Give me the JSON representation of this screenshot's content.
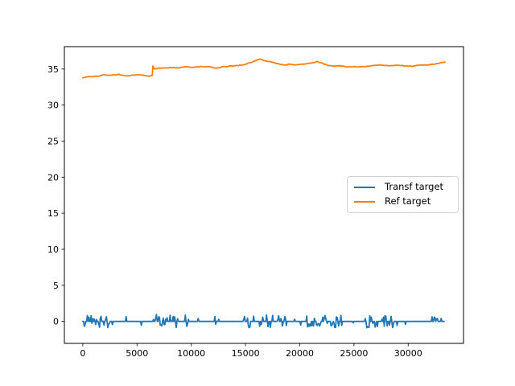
{
  "figure": {
    "background": "#ffffff"
  },
  "chart_data": {
    "type": "line",
    "title": "",
    "xlabel": "",
    "ylabel": "",
    "grid": false,
    "legend": {
      "location": "center right",
      "entries": [
        "Transf target",
        "Ref target"
      ]
    },
    "axes": {
      "xlim": [
        -1700,
        35100
      ],
      "ylim": [
        -3.05,
        38.1
      ],
      "x_ticks": [
        0,
        5000,
        10000,
        15000,
        20000,
        25000,
        30000
      ],
      "x_tick_labels": [
        "0",
        "5000",
        "10000",
        "15000",
        "20000",
        "25000",
        "30000"
      ],
      "y_ticks": [
        0,
        5,
        10,
        15,
        20,
        25,
        30,
        35
      ],
      "y_tick_labels": [
        "0",
        "5",
        "10",
        "15",
        "20",
        "25",
        "30",
        "35"
      ]
    },
    "series": [
      {
        "name": "Transf target",
        "color": "#1f77b4",
        "render": "noisy-baseline",
        "baseline": 0,
        "x_range": [
          0,
          33350
        ],
        "spike_amplitude_range": [
          -1.1,
          1.0
        ],
        "noise_bursts": [
          {
            "from": 50,
            "to": 2730,
            "density": 0.55,
            "amplitude": 0.9
          },
          {
            "from": 2800,
            "to": 5600,
            "density": 0.1,
            "amplitude": 0.75
          },
          {
            "from": 6400,
            "to": 9970,
            "density": 0.5,
            "amplitude": 0.95
          },
          {
            "from": 10200,
            "to": 13100,
            "density": 0.08,
            "amplitude": 0.7
          },
          {
            "from": 14650,
            "to": 18800,
            "density": 0.42,
            "amplitude": 0.9
          },
          {
            "from": 19000,
            "to": 20400,
            "density": 0.08,
            "amplitude": 0.6
          },
          {
            "from": 20650,
            "to": 23950,
            "density": 0.5,
            "amplitude": 0.9
          },
          {
            "from": 24100,
            "to": 25800,
            "density": 0.1,
            "amplitude": 0.7
          },
          {
            "from": 25950,
            "to": 29100,
            "density": 0.5,
            "amplitude": 0.9
          },
          {
            "from": 29300,
            "to": 31600,
            "density": 0.06,
            "amplitude": 0.6
          },
          {
            "from": 31850,
            "to": 33300,
            "density": 0.3,
            "amplitude": 0.8,
            "up_fraction": 0.85
          }
        ]
      },
      {
        "name": "Ref target",
        "color": "#ff7f0e",
        "render": "keypoints",
        "points": [
          [
            0,
            33.8
          ],
          [
            400,
            33.9
          ],
          [
            900,
            33.95
          ],
          [
            1400,
            34.0
          ],
          [
            1900,
            34.2
          ],
          [
            2300,
            34.1
          ],
          [
            2800,
            34.15
          ],
          [
            3300,
            34.25
          ],
          [
            3700,
            34.1
          ],
          [
            4200,
            34.05
          ],
          [
            4700,
            34.15
          ],
          [
            5200,
            34.2
          ],
          [
            5700,
            34.1
          ],
          [
            6100,
            34.05
          ],
          [
            6400,
            34.1
          ],
          [
            6460,
            35.4
          ],
          [
            6600,
            35.0
          ],
          [
            7000,
            35.1
          ],
          [
            7600,
            35.15
          ],
          [
            8200,
            35.2
          ],
          [
            8800,
            35.15
          ],
          [
            9400,
            35.3
          ],
          [
            10000,
            35.25
          ],
          [
            10600,
            35.3
          ],
          [
            11200,
            35.35
          ],
          [
            11800,
            35.25
          ],
          [
            12300,
            35.1
          ],
          [
            12900,
            35.3
          ],
          [
            13500,
            35.4
          ],
          [
            14100,
            35.45
          ],
          [
            14700,
            35.55
          ],
          [
            15300,
            35.8
          ],
          [
            15900,
            36.15
          ],
          [
            16300,
            36.35
          ],
          [
            16800,
            36.15
          ],
          [
            17300,
            36.0
          ],
          [
            17800,
            35.8
          ],
          [
            18300,
            35.6
          ],
          [
            18700,
            35.55
          ],
          [
            19100,
            35.7
          ],
          [
            19500,
            35.55
          ],
          [
            20000,
            35.65
          ],
          [
            20600,
            35.7
          ],
          [
            21200,
            35.85
          ],
          [
            21600,
            36.05
          ],
          [
            22100,
            35.75
          ],
          [
            22600,
            35.5
          ],
          [
            23100,
            35.4
          ],
          [
            23700,
            35.45
          ],
          [
            24300,
            35.3
          ],
          [
            24900,
            35.35
          ],
          [
            25500,
            35.3
          ],
          [
            26100,
            35.35
          ],
          [
            26700,
            35.45
          ],
          [
            27300,
            35.55
          ],
          [
            27900,
            35.5
          ],
          [
            28500,
            35.45
          ],
          [
            29100,
            35.5
          ],
          [
            29700,
            35.45
          ],
          [
            30300,
            35.4
          ],
          [
            30900,
            35.5
          ],
          [
            31500,
            35.55
          ],
          [
            32100,
            35.6
          ],
          [
            32700,
            35.75
          ],
          [
            33400,
            35.95
          ]
        ]
      }
    ]
  }
}
